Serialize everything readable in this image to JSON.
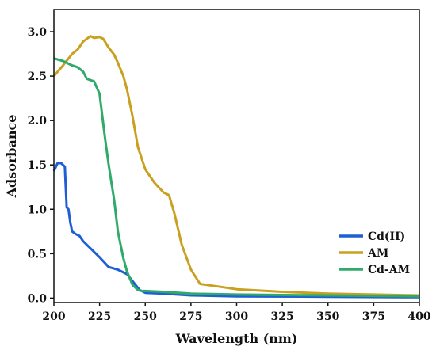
{
  "chart_data": {
    "type": "line",
    "xlabel": "Wavelength (nm)",
    "ylabel": "Adsorbance",
    "xlim": [
      200,
      400
    ],
    "ylim": [
      -0.05,
      3.25
    ],
    "xticks": [
      200,
      225,
      250,
      275,
      300,
      325,
      350,
      375,
      400
    ],
    "xtick_labels": [
      "200",
      "225",
      "250",
      "275",
      "300",
      "325",
      "350",
      "375",
      "400"
    ],
    "yticks": [
      0,
      0.5,
      1,
      1.5,
      2,
      2.5,
      3
    ],
    "ytick_labels": [
      "0.0",
      "0.5",
      "1.0",
      "1.5",
      "2.0",
      "2.5",
      "3.0"
    ],
    "grid": false,
    "legend_position": "bottom-right",
    "series": [
      {
        "name": "Cd(II)",
        "color": "#1f5fd6",
        "x": [
          200,
          202,
          204,
          206,
          207,
          208,
          209,
          210,
          212,
          214,
          216,
          220,
          225,
          230,
          235,
          240,
          245,
          247,
          250,
          260,
          275,
          300,
          350,
          400
        ],
        "y": [
          1.43,
          1.52,
          1.52,
          1.48,
          1.02,
          1.0,
          0.85,
          0.75,
          0.72,
          0.7,
          0.64,
          0.56,
          0.46,
          0.35,
          0.32,
          0.27,
          0.14,
          0.09,
          0.06,
          0.05,
          0.03,
          0.02,
          0.015,
          0.01
        ]
      },
      {
        "name": "AM",
        "color": "#c9a020",
        "x": [
          200,
          205,
          210,
          213,
          216,
          220,
          222,
          225,
          227,
          230,
          233,
          235,
          238,
          240,
          243,
          246,
          250,
          255,
          260,
          263,
          266,
          270,
          275,
          280,
          290,
          300,
          325,
          350,
          375,
          400
        ],
        "y": [
          2.5,
          2.62,
          2.75,
          2.8,
          2.89,
          2.95,
          2.93,
          2.94,
          2.92,
          2.82,
          2.74,
          2.65,
          2.5,
          2.35,
          2.05,
          1.7,
          1.45,
          1.3,
          1.19,
          1.16,
          0.95,
          0.6,
          0.32,
          0.16,
          0.13,
          0.1,
          0.07,
          0.05,
          0.04,
          0.03
        ]
      },
      {
        "name": "Cd-AM",
        "color": "#2faa6a",
        "x": [
          200,
          205,
          210,
          213,
          216,
          218,
          222,
          225,
          228,
          230,
          233,
          235,
          238,
          240,
          243,
          246,
          248,
          250,
          260,
          275,
          300,
          350,
          400
        ],
        "y": [
          2.7,
          2.67,
          2.62,
          2.6,
          2.55,
          2.47,
          2.44,
          2.3,
          1.8,
          1.5,
          1.1,
          0.75,
          0.45,
          0.3,
          0.15,
          0.09,
          0.08,
          0.08,
          0.07,
          0.05,
          0.04,
          0.03,
          0.02
        ]
      }
    ]
  }
}
